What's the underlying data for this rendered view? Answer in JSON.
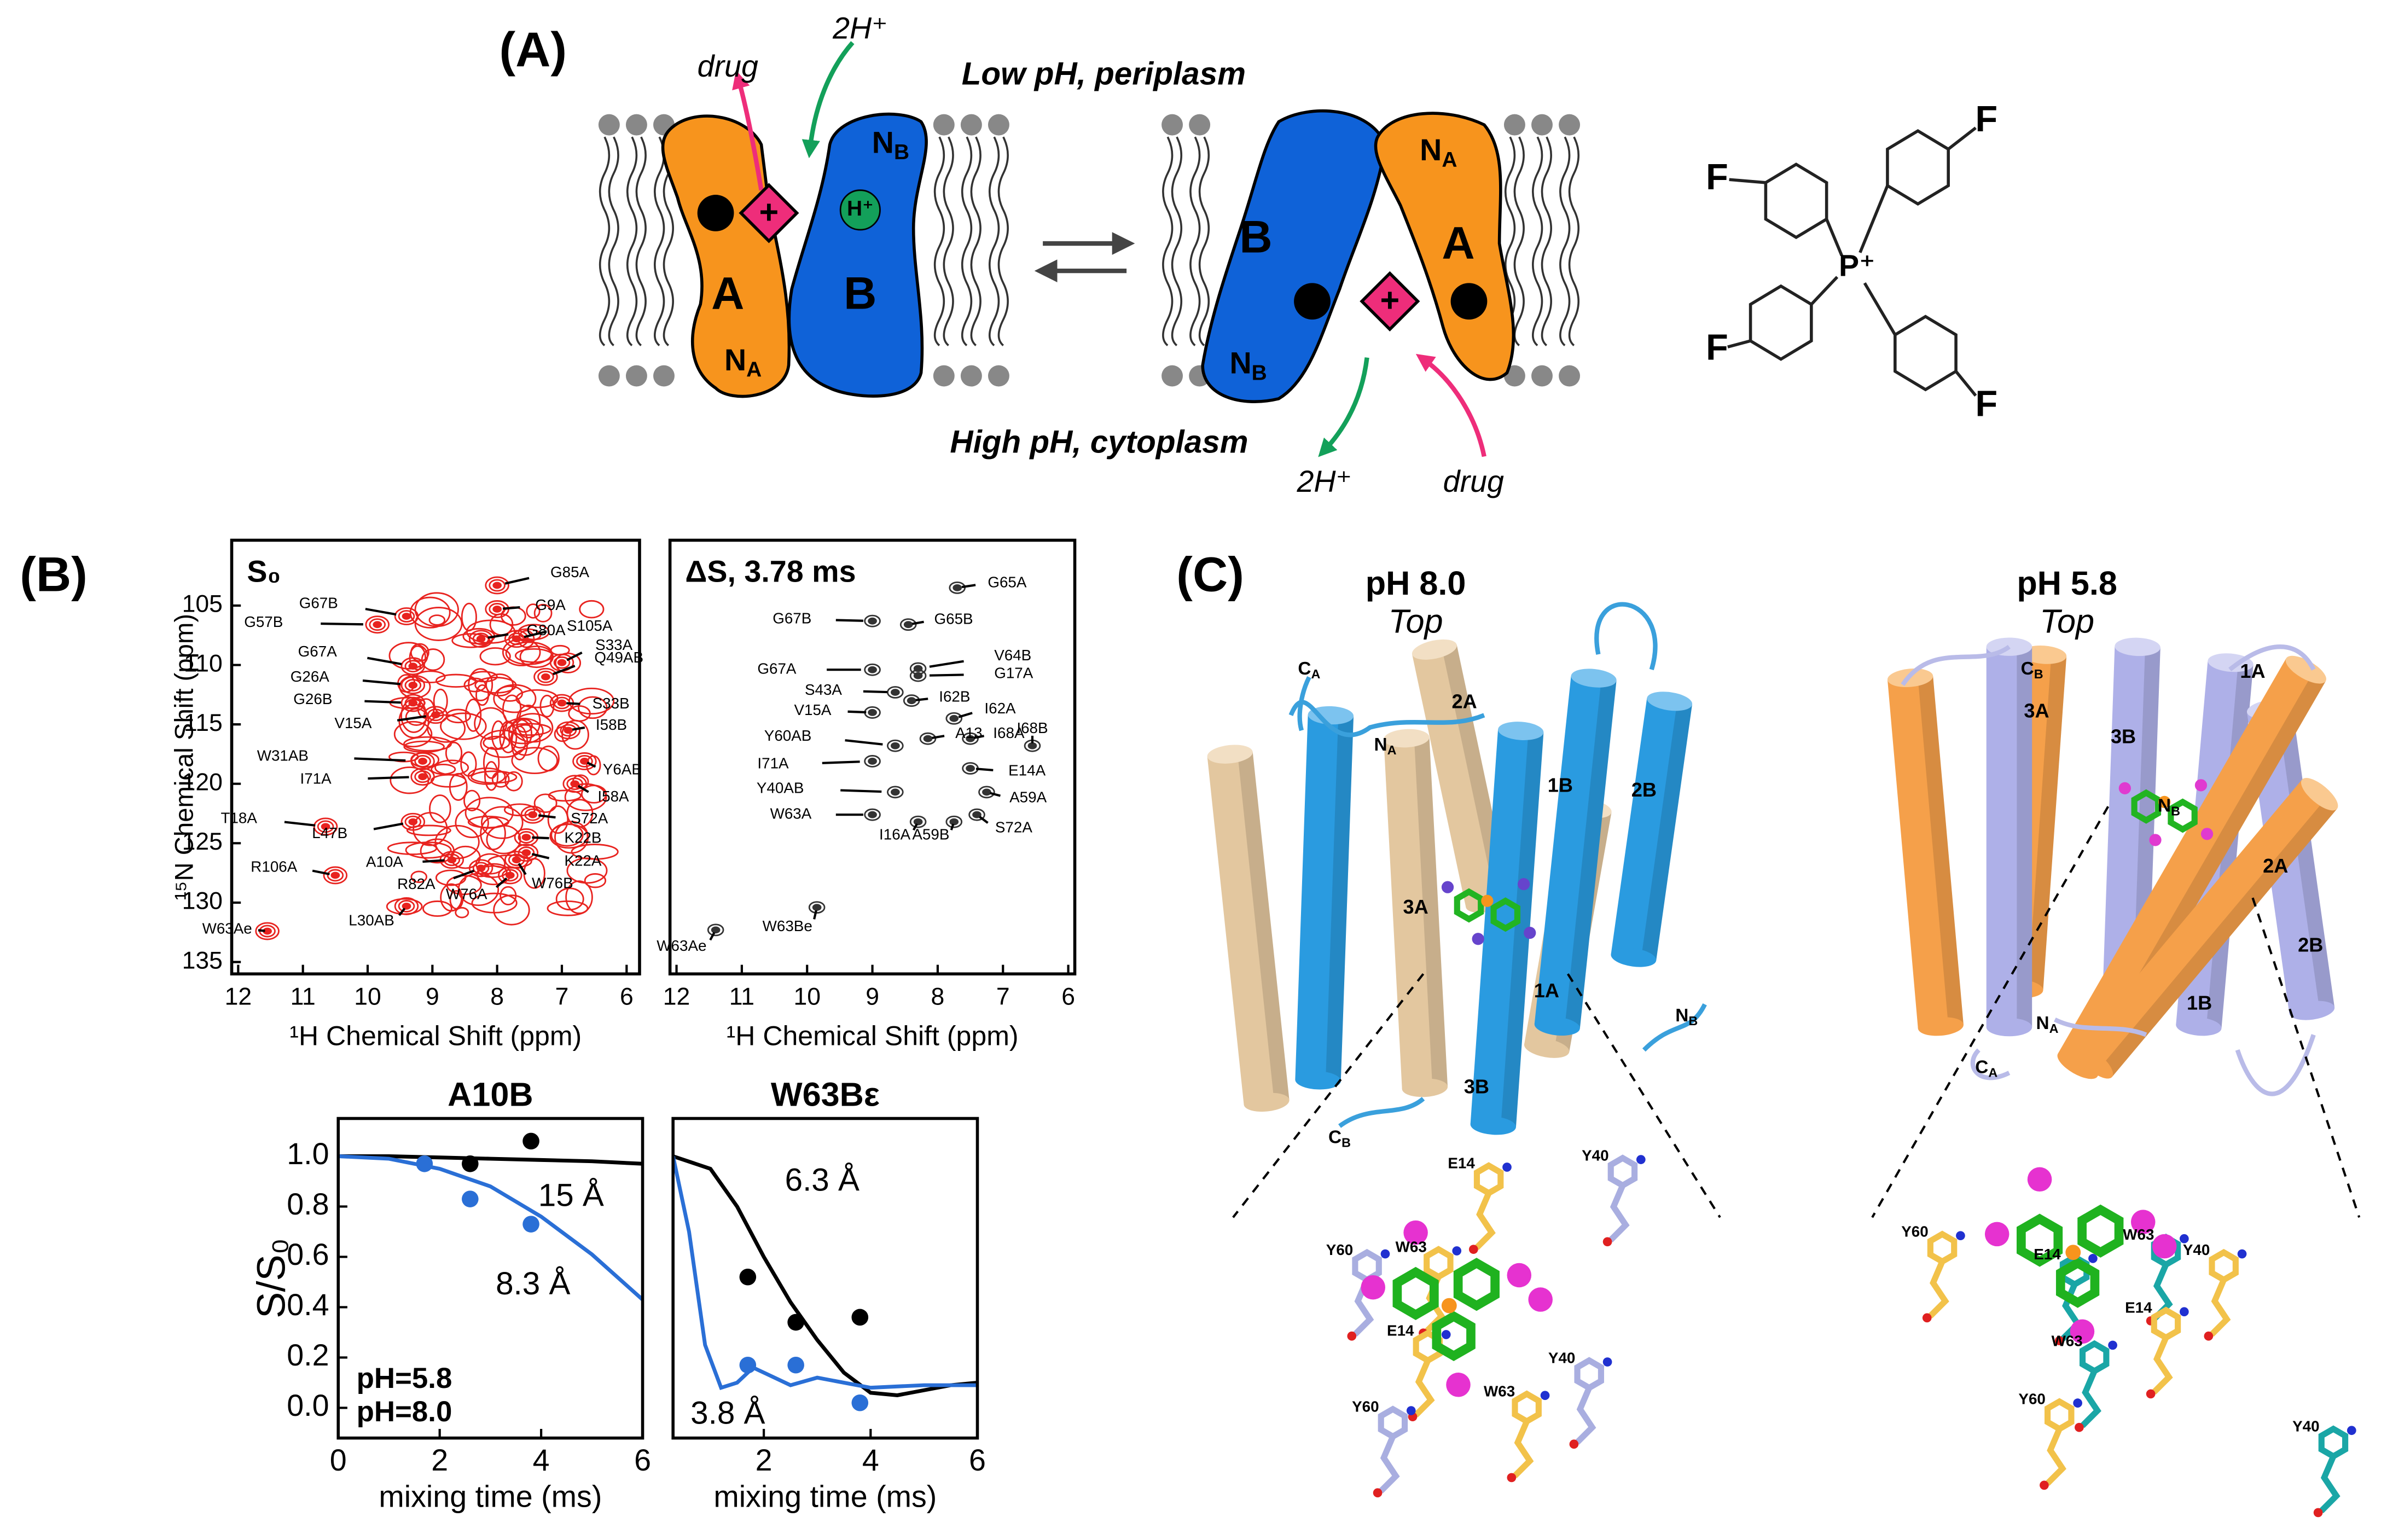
{
  "panel_a": {
    "label": "(A)",
    "drug": "drug",
    "protons": "2H⁺",
    "low_ph": "Low pH, periplasm",
    "high_ph": "High pH, cytoplasm",
    "minus": "−",
    "plus": "+",
    "h_plus": "H⁺",
    "subunit_a": "A",
    "subunit_b": "B",
    "n_a": {
      "main": "N",
      "sub": "A"
    },
    "n_b": {
      "main": "N",
      "sub": "B"
    },
    "molecule": {
      "fluorine": "F",
      "phosphorus": "P⁺"
    }
  },
  "panel_b": {
    "label": "(B)"
  },
  "chart_data": [
    {
      "type": "scatter",
      "title": "S₀",
      "color": "#e8231f",
      "xlabel": "¹H Chemical Shift (ppm)",
      "ylabel": "¹⁵N Chemical Shift (ppm)",
      "xlim": [
        12.1,
        5.8
      ],
      "ylim": [
        136,
        99.5
      ],
      "xticks": [
        12,
        11,
        10,
        9,
        8,
        7,
        6
      ],
      "yticks": [
        105,
        110,
        115,
        120,
        125,
        130,
        135
      ],
      "labels": [
        "G85A",
        "G67B",
        "G57B",
        "G9A",
        "G80A",
        "S105A",
        "G67A",
        "S33A",
        "Q49AB",
        "G26A",
        "G26B",
        "S33B",
        "V15A",
        "I58B",
        "W31AB",
        "Y6AB",
        "I71A",
        "I58A",
        "T18A",
        "L47B",
        "S72A",
        "K22B",
        "K22A",
        "A10A",
        "R106A",
        "R82A",
        "W76A",
        "W76B",
        "L30AB",
        "W63Ae"
      ],
      "x": [
        8.0,
        9.4,
        9.85,
        8.0,
        8.25,
        7.7,
        9.3,
        7.0,
        7.25,
        9.3,
        9.3,
        7.0,
        8.95,
        6.9,
        9.15,
        6.65,
        9.15,
        6.8,
        10.65,
        9.3,
        7.45,
        7.55,
        7.55,
        8.7,
        10.5,
        8.25,
        7.8,
        7.7,
        9.4,
        11.55
      ],
      "y": [
        103.3,
        105.9,
        106.6,
        105.3,
        107.8,
        107.8,
        110.1,
        109.8,
        111.0,
        111.7,
        113.2,
        113.2,
        114.2,
        115.5,
        118.1,
        118.1,
        119.4,
        120.0,
        123.6,
        123.2,
        122.6,
        124.5,
        125.8,
        126.4,
        127.7,
        127.1,
        127.7,
        126.4,
        130.3,
        132.4
      ]
    },
    {
      "type": "scatter",
      "title": "ΔS, 3.78 ms",
      "color": "#333333",
      "xlabel": "¹H Chemical Shift (ppm)",
      "xlim": [
        12.1,
        5.9
      ],
      "ylim": [
        136,
        99.5
      ],
      "xticks": [
        12,
        11,
        10,
        9,
        8,
        7,
        6
      ],
      "labels": [
        "G65A",
        "G67B",
        "G65B",
        "G67A",
        "V64B",
        "G17A",
        "S43A",
        "I62B",
        "V15A",
        "I62A",
        "I68B",
        "Y60AB",
        "A13",
        "I68A",
        "I71A",
        "E14A",
        "Y40AB",
        "A59A",
        "W63A",
        "I16A",
        "A59B",
        "S72A",
        "W63Be",
        "W63Ae"
      ],
      "x": [
        7.7,
        9.0,
        8.45,
        9.0,
        8.3,
        8.3,
        8.65,
        8.4,
        9.0,
        7.75,
        6.55,
        8.65,
        8.15,
        7.5,
        9.0,
        7.5,
        8.65,
        7.25,
        9.0,
        8.3,
        7.75,
        7.4,
        9.85,
        11.4
      ],
      "y": [
        103.5,
        106.3,
        106.6,
        110.4,
        110.3,
        110.9,
        112.3,
        113.0,
        114.0,
        114.5,
        116.8,
        116.8,
        116.2,
        116.2,
        118.1,
        118.7,
        120.7,
        120.7,
        122.6,
        123.2,
        123.2,
        122.6,
        130.4,
        132.3
      ]
    },
    {
      "type": "line",
      "title": "A10B",
      "xlabel": "mixing time (ms)",
      "ylabel": "S/S₀",
      "xlim": [
        0,
        6
      ],
      "ylim": [
        -0.12,
        1.15
      ],
      "xticks": [
        0,
        2,
        4,
        6
      ],
      "yticks": [
        {
          "value": 0,
          "label": "0.0"
        },
        {
          "value": 0.2,
          "label": "0.2"
        },
        {
          "value": 0.4,
          "label": "0.4"
        },
        {
          "value": 0.6,
          "label": "0.6"
        },
        {
          "value": 0.8,
          "label": "0.8"
        },
        {
          "value": 1,
          "label": "1.0"
        }
      ],
      "series": [
        {
          "name": "pH=5.8",
          "color": "#000000",
          "x": [
            0,
            1,
            2,
            3,
            4,
            5,
            6
          ],
          "values": [
            1,
            1,
            0.995,
            0.99,
            0.985,
            0.98,
            0.97
          ]
        },
        {
          "name": "pH=8.0",
          "color": "#2a6fd6",
          "x": [
            0,
            1,
            2,
            3,
            4,
            5,
            6
          ],
          "values": [
            1,
            0.99,
            0.95,
            0.88,
            0.76,
            0.61,
            0.43
          ]
        }
      ],
      "measurements": [
        {
          "color": "#000000",
          "x": [
            2.6,
            3.8
          ],
          "values": [
            0.97,
            1.06
          ]
        },
        {
          "color": "#2a6fd6",
          "x": [
            1.7,
            2.6,
            3.8
          ],
          "values": [
            0.97,
            0.83,
            0.73
          ]
        }
      ],
      "annotations": [
        {
          "text": "15 Å",
          "color": "#000000"
        },
        {
          "text": "8.3 Å",
          "color": "#2a6fd6"
        }
      ]
    },
    {
      "type": "line",
      "title": "W63Bε",
      "xlabel": "mixing time (ms)",
      "xlim": [
        0.3,
        6
      ],
      "ylim": [
        -0.12,
        1.15
      ],
      "xticks": [
        2,
        4,
        6
      ],
      "series": [
        {
          "color": "#000000",
          "x": [
            0.3,
            1,
            1.5,
            2,
            2.5,
            3,
            3.5,
            4,
            4.5,
            5,
            5.5,
            6
          ],
          "values": [
            1,
            0.95,
            0.8,
            0.6,
            0.42,
            0.27,
            0.14,
            0.06,
            0.05,
            0.07,
            0.09,
            0.1
          ]
        },
        {
          "color": "#2a6fd6",
          "x": [
            0.3,
            0.6,
            0.9,
            1.2,
            1.5,
            1.8,
            2.1,
            2.5,
            3,
            3.5,
            4,
            5,
            6
          ],
          "values": [
            1,
            0.7,
            0.25,
            0.08,
            0.1,
            0.16,
            0.13,
            0.09,
            0.12,
            0.1,
            0.08,
            0.09,
            0.09
          ]
        }
      ],
      "measurements": [
        {
          "color": "#000000",
          "x": [
            1.7,
            2.6,
            3.8
          ],
          "values": [
            0.52,
            0.34,
            0.36
          ]
        },
        {
          "color": "#2a6fd6",
          "x": [
            1.7,
            2.6,
            3.8
          ],
          "values": [
            0.17,
            0.17,
            0.02
          ]
        }
      ],
      "annotations": [
        {
          "text": "6.3 Å",
          "color": "#000000"
        },
        {
          "text": "3.8 Å",
          "color": "#2a6fd6"
        }
      ]
    }
  ],
  "panel_c": {
    "label": "(C)",
    "views": [
      {
        "title": "pH 8.0",
        "subtitle": "Top",
        "helices": [
          "2A",
          "1B",
          "2B",
          "3A",
          "1A",
          "3B"
        ],
        "termini": [
          {
            "main": "C",
            "sub": "A"
          },
          {
            "main": "N",
            "sub": "A"
          },
          {
            "main": "N",
            "sub": "B"
          },
          {
            "main": "C",
            "sub": "B"
          }
        ],
        "residues": [
          "E14",
          "Y60",
          "W63",
          "Y40",
          "E14",
          "Y60",
          "W63",
          "Y40"
        ]
      },
      {
        "title": "pH 5.8",
        "subtitle": "Top",
        "helices": [
          "1A",
          "3A",
          "3B",
          "2A",
          "2B",
          "1B"
        ],
        "termini": [
          {
            "main": "C",
            "sub": "B"
          },
          {
            "main": "N",
            "sub": "B"
          },
          {
            "main": "N",
            "sub": "A"
          },
          {
            "main": "C",
            "sub": "A"
          }
        ],
        "residues": [
          "Y60",
          "W63",
          "Y40",
          "E14",
          "E14",
          "W63",
          "Y60",
          "Y40"
        ]
      }
    ]
  }
}
